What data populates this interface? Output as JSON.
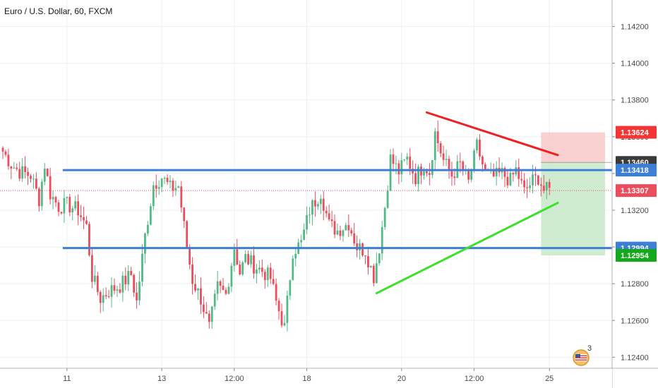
{
  "title": "Euro / U.S. Dollar, 60, FXCM",
  "colors": {
    "up": "#53b987",
    "down": "#eb4d5c",
    "support_resistance": "#3d7fd6",
    "resistance_trend": "#f02020",
    "support_trend": "#3de02a",
    "stop_zone": "#f7c1c1",
    "target_zone": "#bfe6c2",
    "grid": "#eef0f3",
    "current_price_line": "#eb4d5c"
  },
  "badge": {
    "icon": "us-flag-icon",
    "count": "3"
  },
  "chart_data": {
    "type": "candlestick",
    "title": "Euro / U.S. Dollar, 60, FXCM",
    "ylim": [
      1.1234,
      1.1434
    ],
    "y_ticks": [
      "1.14200",
      "1.14000",
      "1.13800",
      "1.13600",
      "1.13400",
      "1.13200",
      "1.13000",
      "1.12800",
      "1.12600",
      "1.12400"
    ],
    "y_tick_values": [
      1.142,
      1.14,
      1.138,
      1.136,
      1.134,
      1.132,
      1.13,
      1.128,
      1.126,
      1.124
    ],
    "x_ticks": [
      {
        "label": "11",
        "bar": 23
      },
      {
        "label": "13",
        "bar": 57
      },
      {
        "label": "12:00",
        "bar": 83
      },
      {
        "label": "18",
        "bar": 109
      },
      {
        "label": "20",
        "bar": 143
      },
      {
        "label": "12:00",
        "bar": 169
      },
      {
        "label": "25",
        "bar": 196
      }
    ],
    "bar_count": 196,
    "anchors": [
      [
        0,
        1.1352
      ],
      [
        3,
        1.1345
      ],
      [
        6,
        1.1341
      ],
      [
        10,
        1.1339
      ],
      [
        13,
        1.1326
      ],
      [
        15,
        1.1345
      ],
      [
        17,
        1.1329
      ],
      [
        20,
        1.1322
      ],
      [
        23,
        1.1323
      ],
      [
        27,
        1.132
      ],
      [
        30,
        1.1311
      ],
      [
        32,
        1.1284
      ],
      [
        35,
        1.1272
      ],
      [
        38,
        1.1276
      ],
      [
        42,
        1.1279
      ],
      [
        46,
        1.1285
      ],
      [
        48,
        1.127
      ],
      [
        51,
        1.1306
      ],
      [
        54,
        1.1334
      ],
      [
        57,
        1.1338
      ],
      [
        60,
        1.1332
      ],
      [
        63,
        1.1333
      ],
      [
        66,
        1.13
      ],
      [
        68,
        1.1282
      ],
      [
        71,
        1.1272
      ],
      [
        74,
        1.1256
      ],
      [
        77,
        1.1278
      ],
      [
        80,
        1.1274
      ],
      [
        83,
        1.13
      ],
      [
        85,
        1.1286
      ],
      [
        87,
        1.1294
      ],
      [
        90,
        1.129
      ],
      [
        93,
        1.1287
      ],
      [
        96,
        1.1283
      ],
      [
        98,
        1.127
      ],
      [
        101,
        1.1256
      ],
      [
        104,
        1.1298
      ],
      [
        107,
        1.1302
      ],
      [
        110,
        1.132
      ],
      [
        114,
        1.133
      ],
      [
        117,
        1.1312
      ],
      [
        120,
        1.1309
      ],
      [
        124,
        1.1313
      ],
      [
        127,
        1.13
      ],
      [
        130,
        1.1298
      ],
      [
        133,
        1.1284
      ],
      [
        135,
        1.13
      ],
      [
        137,
        1.1322
      ],
      [
        139,
        1.1348
      ],
      [
        142,
        1.1341
      ],
      [
        145,
        1.1348
      ],
      [
        148,
        1.1338
      ],
      [
        151,
        1.1345
      ],
      [
        153,
        1.1341
      ],
      [
        155,
        1.1362
      ],
      [
        158,
        1.1347
      ],
      [
        161,
        1.1339
      ],
      [
        164,
        1.1345
      ],
      [
        167,
        1.1335
      ],
      [
        170,
        1.1355
      ],
      [
        173,
        1.134
      ],
      [
        176,
        1.1338
      ],
      [
        179,
        1.134
      ],
      [
        182,
        1.1336
      ],
      [
        184,
        1.1342
      ],
      [
        187,
        1.133
      ],
      [
        190,
        1.1336
      ],
      [
        192,
        1.1338
      ],
      [
        194,
        1.1331
      ]
    ],
    "horizontal_lines": [
      {
        "name": "resistance",
        "price": 1.13418,
        "from_bar": 23,
        "to_bar": "end"
      },
      {
        "name": "support",
        "price": 1.12994,
        "from_bar": 23,
        "to_bar": "end"
      }
    ],
    "trend_lines": [
      {
        "name": "descending-resistance",
        "from": [
          152,
          1.13732
        ],
        "to": [
          199,
          1.135
        ]
      },
      {
        "name": "ascending-support",
        "from": [
          134,
          1.12748
        ],
        "to": [
          199,
          1.1324
        ]
      }
    ],
    "position": {
      "type": "short",
      "start_bar": 193,
      "entry": 1.1346,
      "stop": 1.13624,
      "target": 1.12954
    },
    "price_tags": [
      {
        "label": "1.13624",
        "price": 1.13624,
        "color": "#f23636"
      },
      {
        "label": "1.13460",
        "price": 1.1346,
        "color": "#3a3a3a"
      },
      {
        "label": "1.13418",
        "price": 1.13418,
        "color": "#3d7fd6"
      },
      {
        "label": "1.13307",
        "price": 1.13307,
        "color": "#eb4d5c"
      },
      {
        "label": "1.12994",
        "price": 1.12994,
        "color": "#3d7fd6"
      },
      {
        "label": "1.12954",
        "price": 1.12954,
        "color": "#14a81b"
      }
    ],
    "current_price": 1.13307
  }
}
